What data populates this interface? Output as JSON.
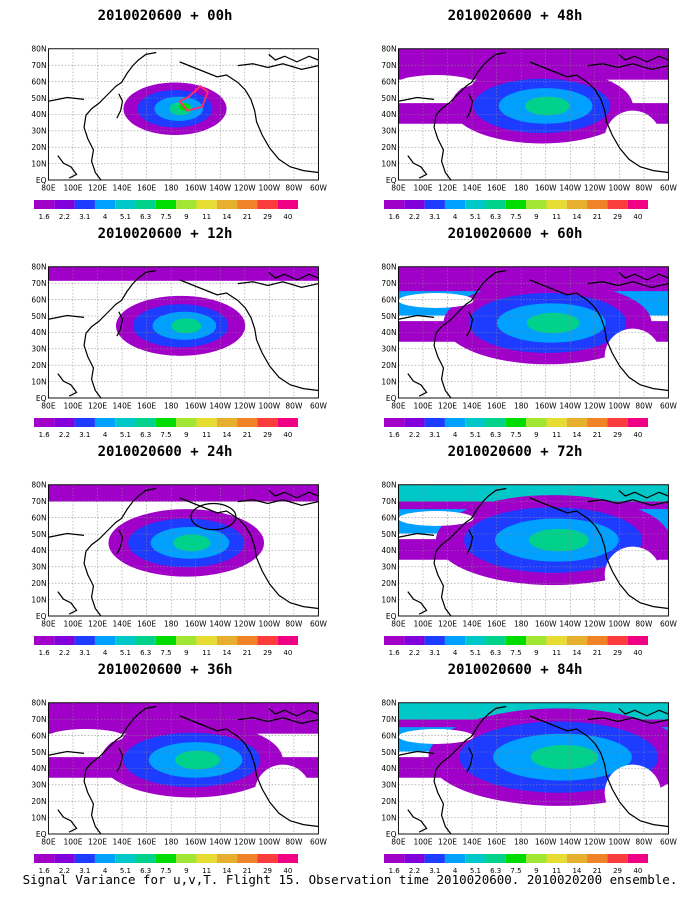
{
  "panels": [
    {
      "title": "2010020600 + 00h",
      "col": 0,
      "row": 0,
      "level": 0,
      "annotation": "red-box"
    },
    {
      "title": "2010020600 + 12h",
      "col": 0,
      "row": 1,
      "level": 1,
      "annotation": "none"
    },
    {
      "title": "2010020600 + 24h",
      "col": 0,
      "row": 2,
      "level": 2,
      "annotation": "black-circle"
    },
    {
      "title": "2010020600 + 36h",
      "col": 0,
      "row": 3,
      "level": 3,
      "annotation": "none"
    },
    {
      "title": "2010020600 + 48h",
      "col": 1,
      "row": 0,
      "level": 3,
      "annotation": "none"
    },
    {
      "title": "2010020600 + 60h",
      "col": 1,
      "row": 1,
      "level": 4,
      "annotation": "none"
    },
    {
      "title": "2010020600 + 72h",
      "col": 1,
      "row": 2,
      "level": 5,
      "annotation": "none"
    },
    {
      "title": "2010020600 + 84h",
      "col": 1,
      "row": 3,
      "level": 6,
      "annotation": "none"
    }
  ],
  "lat_labels": [
    "80N",
    "70N",
    "60N",
    "50N",
    "40N",
    "30N",
    "20N",
    "10N",
    "EQ"
  ],
  "lon_labels": [
    "80E",
    "100E",
    "120E",
    "140E",
    "160E",
    "180",
    "160W",
    "140W",
    "120W",
    "100W",
    "80W",
    "60W"
  ],
  "colorbar": {
    "labels": [
      "1.6",
      "2.2",
      "3.1",
      "4",
      "5.1",
      "6.3",
      "7.5",
      "9",
      "11",
      "14",
      "21",
      "29",
      "40"
    ],
    "colors": [
      "#a000c8",
      "#8200dc",
      "#1e3cff",
      "#00a0ff",
      "#00c8c8",
      "#00d28c",
      "#00dc00",
      "#a0e632",
      "#e6dc32",
      "#e6af2d",
      "#f08228",
      "#fa3c3c",
      "#f00082"
    ]
  },
  "footer": "Signal Variance for u,v,T. Flight 15. Observation time 2010020600. 2010020200 ensemble."
}
